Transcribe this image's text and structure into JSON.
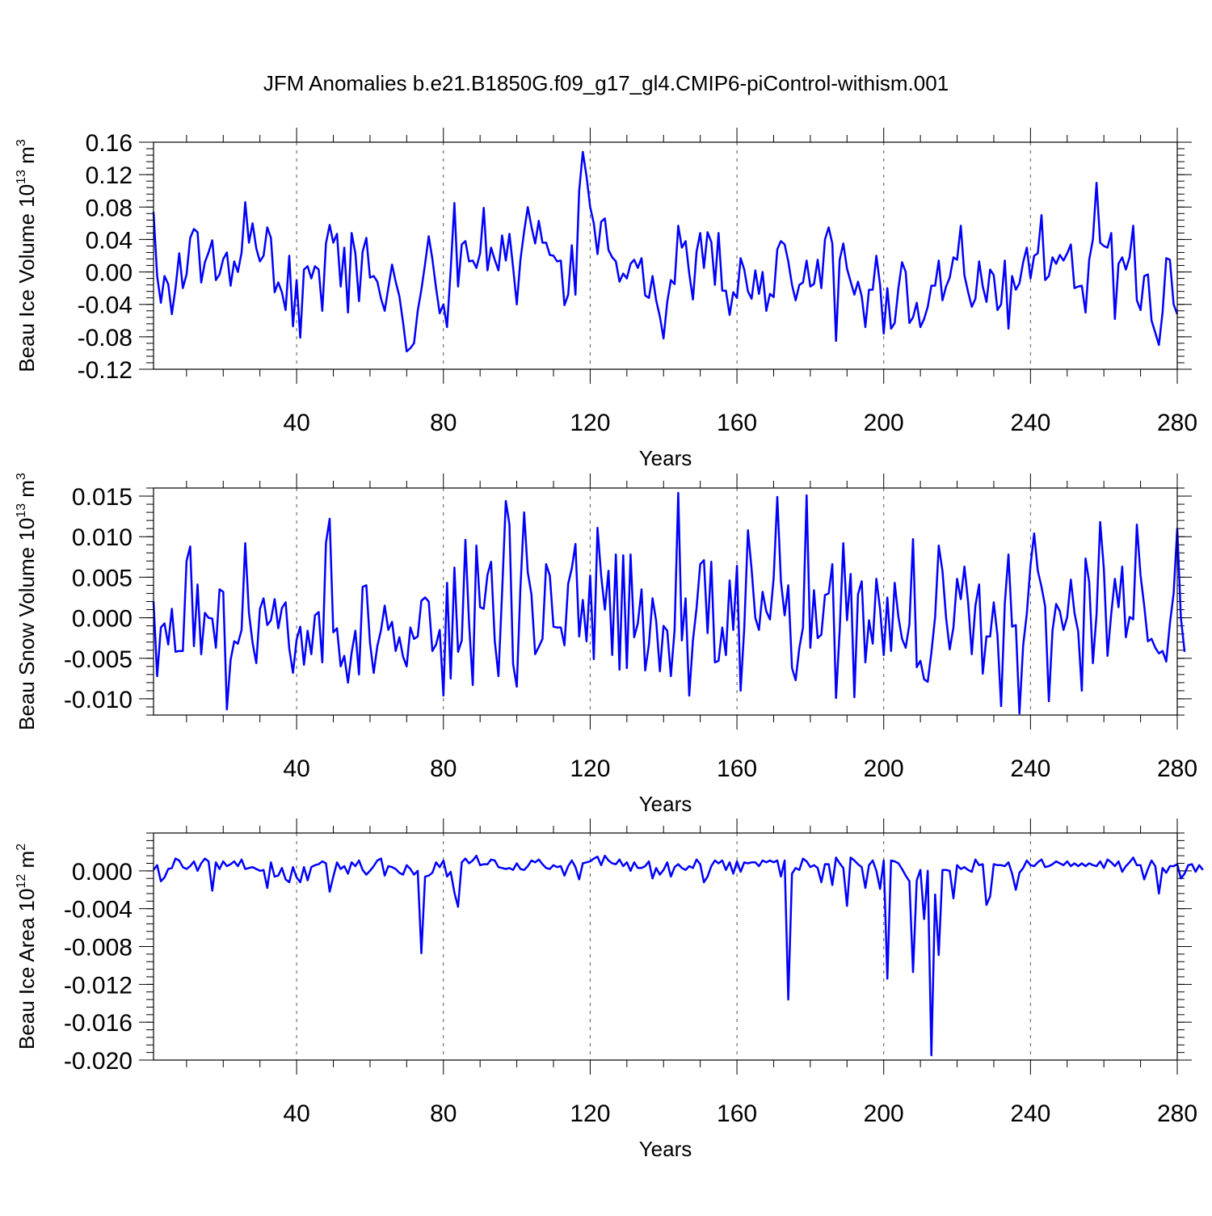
{
  "title": "JFM Anomalies b.e21.B1850G.f09_g17_gl4.CMIP6-piControl-withism.001",
  "colors": {
    "line": "#0000ff",
    "axis": "#000000",
    "grid": "#555555"
  },
  "chart_data": [
    {
      "type": "line",
      "name": "beau-ice-volume",
      "ylabel": {
        "text": "Beau Ice Volume 10",
        "sup": "13",
        "unit": " m",
        "unit_sup": "3"
      },
      "xlabel": "Years",
      "xlim": [
        1,
        280
      ],
      "ylim": [
        -0.12,
        0.16
      ],
      "xticks": [
        40,
        80,
        120,
        160,
        200,
        240,
        280
      ],
      "xtick_labels": [
        "40",
        "80",
        "120",
        "160",
        "200",
        "240",
        "280"
      ],
      "yticks": [
        -0.12,
        -0.08,
        -0.04,
        0.0,
        0.04,
        0.08,
        0.12,
        0.16
      ],
      "ytick_labels": [
        "-0.12",
        "-0.08",
        "-0.04",
        "0.00",
        "0.04",
        "0.08",
        "0.12",
        "0.16"
      ],
      "grid": "dashed-vertical",
      "x_start": 1,
      "y": [
        0.074,
        -0.005,
        -0.038,
        -0.005,
        -0.015,
        -0.052,
        -0.02,
        0.023,
        -0.02,
        -0.003,
        0.042,
        0.053,
        0.049,
        -0.013,
        0.012,
        0.024,
        0.039,
        -0.01,
        -0.003,
        0.016,
        0.024,
        -0.017,
        0.013,
        0.0,
        0.024,
        0.086,
        0.036,
        0.06,
        0.029,
        0.013,
        0.02,
        0.055,
        0.042,
        -0.025,
        -0.013,
        -0.025,
        -0.047,
        0.02,
        -0.067,
        -0.01,
        -0.081,
        0.003,
        0.007,
        -0.008,
        0.007,
        0.003,
        -0.048,
        0.035,
        0.058,
        0.036,
        0.047,
        -0.018,
        0.03,
        -0.05,
        0.048,
        0.023,
        -0.036,
        0.025,
        0.042,
        -0.007,
        -0.005,
        -0.012,
        -0.033,
        -0.048,
        -0.02,
        0.009,
        -0.012,
        -0.03,
        -0.062,
        -0.098,
        -0.094,
        -0.088,
        -0.048,
        -0.022,
        0.01,
        0.044,
        0.016,
        -0.02,
        -0.051,
        -0.04,
        -0.068,
        0.003,
        0.085,
        -0.018,
        0.034,
        0.038,
        0.013,
        0.014,
        0.005,
        0.023,
        0.079,
        0.002,
        0.03,
        0.015,
        0.002,
        0.045,
        0.014,
        0.047,
        0.006,
        -0.04,
        0.015,
        0.05,
        0.08,
        0.056,
        0.035,
        0.063,
        0.036,
        0.036,
        0.021,
        0.02,
        0.013,
        0.014,
        -0.041,
        -0.028,
        0.033,
        -0.028,
        0.1,
        0.148,
        0.118,
        0.08,
        0.06,
        0.022,
        0.062,
        0.066,
        0.027,
        0.018,
        0.013,
        -0.012,
        -0.002,
        -0.008,
        0.01,
        0.015,
        0.005,
        0.017,
        -0.029,
        -0.032,
        -0.005,
        -0.035,
        -0.055,
        -0.082,
        -0.037,
        -0.01,
        -0.015,
        0.057,
        0.03,
        0.038,
        -0.002,
        -0.034,
        0.025,
        0.048,
        0.005,
        0.049,
        0.037,
        -0.016,
        0.048,
        -0.023,
        -0.023,
        -0.053,
        -0.025,
        -0.032,
        0.017,
        0.003,
        -0.024,
        -0.033,
        0.002,
        -0.027,
        0.0,
        -0.048,
        -0.027,
        -0.031,
        0.028,
        0.038,
        0.034,
        0.013,
        -0.016,
        -0.035,
        -0.016,
        -0.013,
        0.014,
        -0.018,
        -0.015,
        0.015,
        -0.02,
        0.04,
        0.055,
        0.035,
        -0.085,
        0.015,
        0.035,
        0.004,
        -0.012,
        -0.028,
        -0.012,
        -0.03,
        -0.068,
        -0.022,
        -0.022,
        0.02,
        -0.016,
        -0.076,
        -0.02,
        -0.07,
        -0.063,
        -0.02,
        0.012,
        0.0,
        -0.063,
        -0.056,
        -0.038,
        -0.068,
        -0.058,
        -0.043,
        -0.017,
        -0.017,
        0.014,
        -0.035,
        -0.018,
        -0.007,
        0.018,
        0.015,
        0.057,
        -0.004,
        -0.025,
        -0.043,
        -0.033,
        0.013,
        -0.018,
        -0.037,
        0.003,
        -0.004,
        -0.047,
        -0.04,
        0.014,
        -0.07,
        -0.005,
        -0.022,
        -0.014,
        0.012,
        0.03,
        -0.008,
        0.02,
        0.023,
        0.07,
        -0.01,
        -0.005,
        0.018,
        0.01,
        0.021,
        0.014,
        0.023,
        0.034,
        -0.02,
        -0.018,
        -0.017,
        -0.05,
        0.015,
        0.04,
        0.11,
        0.036,
        0.032,
        0.03,
        0.048,
        -0.058,
        0.01,
        0.018,
        0.003,
        0.018,
        0.057,
        -0.035,
        -0.047,
        -0.005,
        -0.003,
        -0.06,
        -0.075,
        -0.09,
        -0.05,
        0.017,
        0.015,
        -0.04,
        -0.052
      ]
    },
    {
      "type": "line",
      "name": "beau-snow-volume",
      "ylabel": {
        "text": "Beau Snow Volume 10",
        "sup": "13",
        "unit": " m",
        "unit_sup": "3"
      },
      "xlabel": "Years",
      "xlim": [
        1,
        280
      ],
      "ylim": [
        -0.012,
        0.016
      ],
      "xticks": [
        40,
        80,
        120,
        160,
        200,
        240,
        280
      ],
      "xtick_labels": [
        "40",
        "80",
        "120",
        "160",
        "200",
        "240",
        "280"
      ],
      "yticks": [
        -0.01,
        -0.005,
        0.0,
        0.005,
        0.01,
        0.015
      ],
      "ytick_labels": [
        "-0.010",
        "-0.005",
        "0.000",
        "0.005",
        "0.010",
        "0.015"
      ],
      "grid": "dashed-vertical",
      "x_start": 1,
      "y": [
        0.002,
        -0.0072,
        -0.0012,
        -0.0007,
        -0.0033,
        0.0011,
        -0.0042,
        -0.0041,
        -0.0041,
        0.007,
        0.0088,
        -0.0035,
        0.0041,
        -0.0045,
        0.0006,
        0.0,
        -0.0001,
        -0.0037,
        0.0035,
        0.0032,
        -0.0113,
        -0.0052,
        -0.0029,
        -0.0032,
        -0.0015,
        0.0092,
        0.0006,
        -0.0031,
        -0.0056,
        0.0011,
        0.0024,
        -0.0009,
        -0.0003,
        0.0023,
        -0.0013,
        0.0012,
        0.0019,
        -0.0038,
        -0.0068,
        -0.0027,
        -0.0011,
        -0.0058,
        -0.0016,
        -0.0045,
        0.0003,
        0.0007,
        -0.0055,
        0.0092,
        0.0122,
        -0.0018,
        -0.0013,
        -0.006,
        -0.0047,
        -0.008,
        -0.0043,
        -0.0016,
        -0.007,
        0.0038,
        0.004,
        -0.0031,
        -0.0068,
        -0.0035,
        -0.0015,
        0.0015,
        -0.0015,
        -0.0005,
        -0.0041,
        -0.0024,
        -0.0048,
        -0.006,
        -0.0012,
        -0.0026,
        -0.0023,
        0.0021,
        0.0025,
        0.002,
        -0.0041,
        -0.0033,
        -0.0015,
        -0.0096,
        0.0043,
        -0.0075,
        0.0062,
        -0.0042,
        -0.0028,
        0.0096,
        -0.0006,
        -0.0083,
        0.0089,
        0.0013,
        0.0011,
        0.0053,
        0.0069,
        -0.0028,
        -0.0072,
        0.0031,
        0.0144,
        0.0115,
        -0.0057,
        -0.0085,
        0.0037,
        0.013,
        0.0056,
        0.0029,
        -0.0045,
        -0.0036,
        -0.0026,
        0.0066,
        0.0052,
        -0.0011,
        -0.0012,
        -0.0012,
        -0.0034,
        0.0042,
        0.0061,
        0.0091,
        -0.0023,
        0.0022,
        -0.0029,
        0.0052,
        -0.0051,
        0.0111,
        0.0052,
        0.001,
        0.0058,
        -0.0046,
        0.0078,
        -0.0064,
        0.0077,
        -0.0062,
        0.0078,
        -0.0024,
        -0.0007,
        0.0035,
        -0.0065,
        -0.0033,
        0.0024,
        -0.0004,
        -0.0066,
        -0.001,
        -0.0016,
        -0.0072,
        -0.0015,
        0.0154,
        -0.0028,
        0.0024,
        -0.0096,
        -0.0028,
        0.0012,
        0.0066,
        0.0071,
        -0.0019,
        0.0069,
        -0.0055,
        -0.0053,
        -0.0012,
        -0.0046,
        0.0046,
        -0.0015,
        0.0064,
        -0.009,
        -0.0013,
        0.0108,
        0.006,
        0.0,
        -0.0015,
        0.0032,
        0.0008,
        -0.0002,
        0.0049,
        0.0149,
        0.0045,
        0.0003,
        0.004,
        -0.0062,
        -0.0077,
        -0.0037,
        -0.0012,
        0.0151,
        -0.0037,
        0.0034,
        -0.0025,
        -0.0021,
        0.0028,
        0.003,
        0.0066,
        -0.0099,
        -0.0016,
        0.0092,
        -0.0003,
        0.0054,
        -0.0098,
        0.0029,
        0.0045,
        -0.0055,
        -0.0003,
        -0.0032,
        0.0048,
        0.0011,
        -0.0046,
        0.0025,
        -0.0041,
        0.0043,
        0.0001,
        -0.0026,
        -0.0037,
        -0.0008,
        0.0097,
        -0.0061,
        -0.0053,
        -0.0076,
        -0.0079,
        -0.0043,
        0.0001,
        0.0089,
        0.0058,
        0.0,
        -0.0039,
        -0.0012,
        0.0048,
        0.0023,
        0.0063,
        0.0019,
        -0.0045,
        0.0015,
        0.0041,
        -0.0069,
        -0.0023,
        -0.0023,
        0.0019,
        -0.0022,
        -0.0109,
        0.0018,
        0.0078,
        -0.0011,
        -0.0009,
        -0.0118,
        -0.0034,
        0.0005,
        0.0065,
        0.0104,
        0.0058,
        0.0038,
        0.0014,
        -0.0103,
        -0.0016,
        0.0017,
        0.0008,
        -0.0015,
        0.0001,
        0.0047,
        0.0006,
        -0.0017,
        -0.009,
        0.0073,
        0.0044,
        -0.0056,
        0.0004,
        0.0118,
        0.006,
        -0.0047,
        0.0005,
        0.0048,
        0.0013,
        0.0063,
        -0.0024,
        0.0001,
        -0.0002,
        0.0115,
        0.0052,
        0.0015,
        -0.0029,
        -0.0026,
        -0.0037,
        -0.0044,
        -0.0041,
        -0.0054,
        -0.0007,
        0.003,
        0.011,
        0.0,
        -0.0042
      ]
    },
    {
      "type": "line",
      "name": "beau-ice-area",
      "ylabel": {
        "text": "Beau Ice Area 10",
        "sup": "12",
        "unit": " m",
        "unit_sup": "2"
      },
      "xlabel": "Years",
      "xlim": [
        1,
        280
      ],
      "ylim": [
        -0.02,
        0.004
      ],
      "xticks": [
        40,
        80,
        120,
        160,
        200,
        240,
        280
      ],
      "xtick_labels": [
        "40",
        "80",
        "120",
        "160",
        "200",
        "240",
        "280"
      ],
      "yticks": [
        -0.02,
        -0.016,
        -0.012,
        -0.008,
        -0.004,
        0.0
      ],
      "ytick_labels": [
        "-0.020",
        "-0.016",
        "-0.012",
        "-0.008",
        "-0.004",
        "0.000"
      ],
      "grid": "dashed-vertical",
      "x_start": 1,
      "y": [
        0.0001,
        0.0006,
        -0.0011,
        -0.0007,
        0.0002,
        0.0003,
        0.0013,
        0.0011,
        0.0004,
        0.0002,
        0.0005,
        0.001,
        0.0,
        0.0008,
        0.0013,
        0.001,
        -0.0021,
        0.0009,
        0.0002,
        0.001,
        0.0005,
        0.0007,
        0.001,
        0.0005,
        0.0012,
        0.0002,
        0.0003,
        0.0004,
        0.0002,
        0.0,
        0.0001,
        -0.0018,
        0.0009,
        -0.0006,
        -0.0005,
        0.0003,
        -0.0009,
        -0.0012,
        0.0004,
        -0.0007,
        -0.0012,
        0.0004,
        -0.001,
        0.0004,
        0.0006,
        0.0007,
        0.001,
        0.0008,
        -0.0022,
        -0.0006,
        0.0009,
        0.0002,
        0.0005,
        -0.0003,
        0.0009,
        0.0005,
        0.0011,
        0.0001,
        -0.0004,
        0.0,
        0.0005,
        0.0011,
        0.0013,
        -0.0005,
        0.0005,
        0.0004,
        0.0002,
        -0.0002,
        -0.0004,
        0.0006,
        0.0002,
        -0.0004,
        0.0,
        -0.0087,
        -0.0006,
        -0.0005,
        -0.0002,
        0.0009,
        0.0004,
        0.0011,
        -0.0006,
        -0.0001,
        -0.0023,
        -0.0038,
        0.0009,
        0.0013,
        0.0008,
        0.0011,
        0.0016,
        0.0006,
        0.0007,
        0.0007,
        0.0012,
        0.0011,
        0.0004,
        0.0003,
        0.0002,
        0.0003,
        0.0001,
        0.0008,
        0.0002,
        0.0001,
        0.0005,
        0.0011,
        0.0009,
        0.0012,
        0.0007,
        0.0003,
        0.0002,
        0.0006,
        0.0004,
        0.0005,
        -0.0005,
        0.0005,
        0.0011,
        0.0004,
        -0.0009,
        0.0008,
        0.0009,
        0.001,
        0.0013,
        0.0015,
        0.0006,
        0.0016,
        0.0011,
        0.0008,
        0.0007,
        0.0012,
        0.0005,
        0.0009,
        0.0,
        0.0009,
        0.0003,
        0.0003,
        0.0005,
        0.001,
        -0.0008,
        0.0003,
        -0.0004,
        0.0001,
        0.0009,
        -0.0006,
        0.0004,
        0.0007,
        0.0003,
        0.0001,
        0.0005,
        0.0003,
        0.0012,
        0.0007,
        -0.0012,
        -0.0006,
        0.0005,
        0.0011,
        0.0008,
        0.0011,
        0.0001,
        0.0009,
        -0.0003,
        0.001,
        -0.0001,
        0.0009,
        0.0008,
        0.0009,
        0.0009,
        0.0005,
        0.0011,
        0.0009,
        0.0011,
        0.0009,
        0.0011,
        -0.0006,
        0.0011,
        -0.0136,
        -0.0003,
        0.0003,
        0.0001,
        0.0013,
        0.001,
        0.0004,
        0.0006,
        0.0003,
        -0.0012,
        0.0007,
        0.0007,
        -0.0015,
        0.0014,
        0.0008,
        0.0003,
        -0.0037,
        0.0014,
        0.0011,
        0.0007,
        0.0004,
        -0.0018,
        0.0006,
        0.0011,
        0.0,
        -0.0019,
        0.0011,
        -0.0114,
        0.0011,
        0.001,
        0.0008,
        0.0002,
        -0.0005,
        -0.0011,
        -0.0107,
        -0.001,
        0.0001,
        -0.0051,
        0.0,
        -0.0195,
        -0.0025,
        -0.0089,
        0.0001,
        0.0001,
        0.0,
        -0.0029,
        0.0006,
        0.0002,
        0.0004,
        0.0001,
        -0.0001,
        0.0012,
        0.0006,
        0.0007,
        -0.0036,
        -0.0027,
        0.0007,
        0.0006,
        0.0006,
        0.0005,
        0.0009,
        -0.0003,
        -0.002,
        -0.0002,
        0.0003,
        0.0011,
        0.0006,
        0.0005,
        0.0009,
        0.0012,
        0.0004,
        0.0005,
        0.0007,
        0.001,
        0.0008,
        0.0006,
        0.001,
        0.0005,
        0.0008,
        0.0005,
        0.0008,
        0.0005,
        0.0008,
        0.0006,
        0.0005,
        0.001,
        0.0003,
        0.0012,
        0.0009,
        0.0005,
        0.001,
        -0.0001,
        0.0005,
        0.0009,
        0.0014,
        0.0006,
        0.0006,
        -0.0009,
        0.0002,
        0.0011,
        0.0005,
        -0.0024,
        0.0003,
        -0.0002,
        0.0005,
        0.0005,
        0.0007,
        -0.0008,
        -0.0003,
        0.0006,
        0.0007,
        -0.0001,
        0.0006,
        0.0001
      ]
    }
  ]
}
